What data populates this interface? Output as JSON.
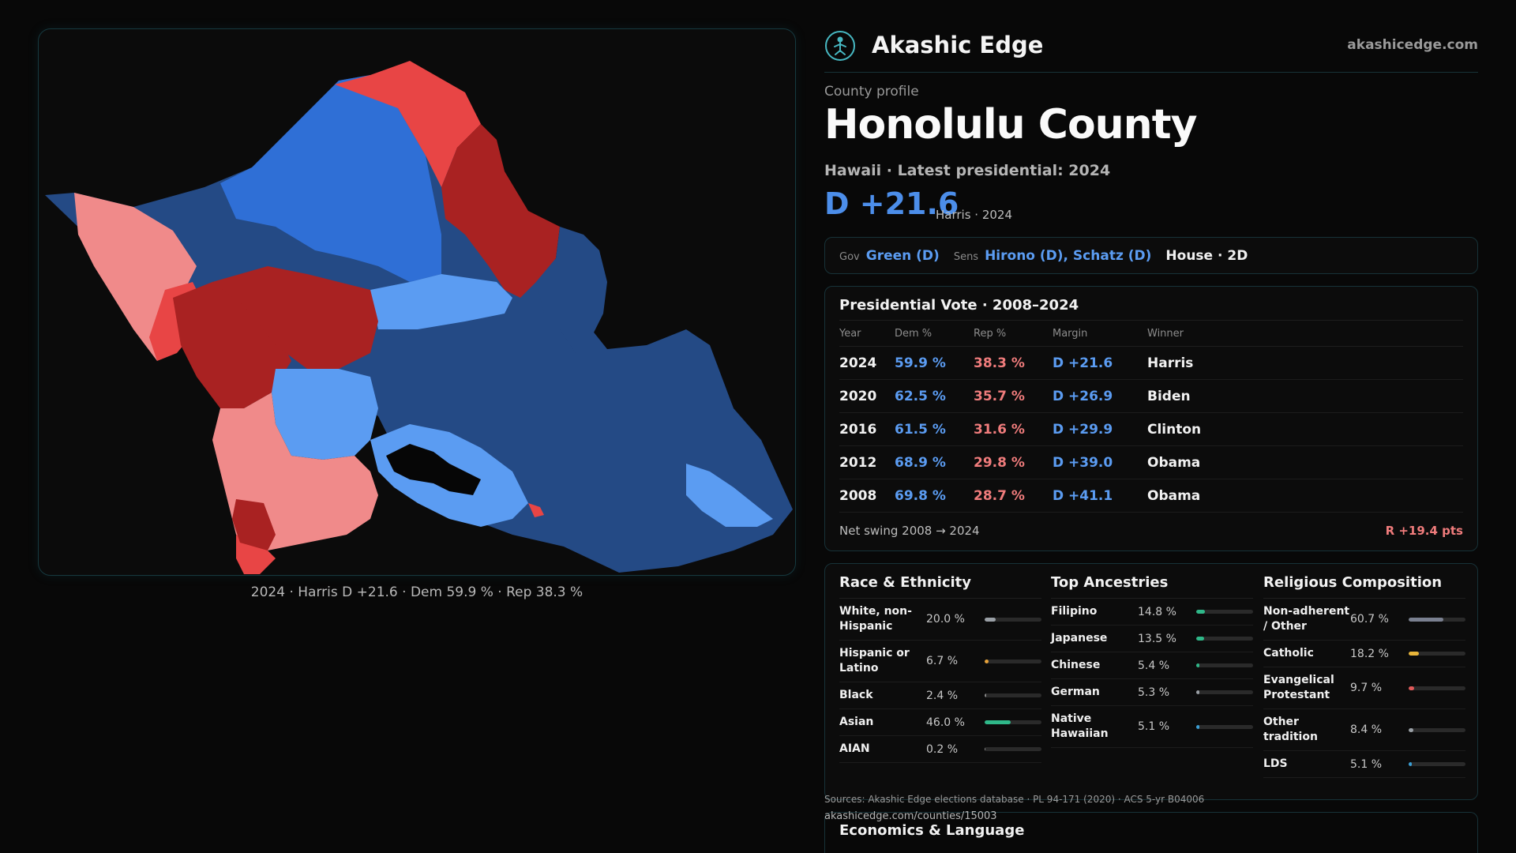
{
  "map": {
    "caption": "2024 · Harris D +21.6 · Dem 59.9 % · Rep 38.3 %",
    "colors": {
      "dem_dark": "#244a85",
      "dem_mid": "#2f6fd6",
      "dem_light": "#5b9cf2",
      "rep_light": "#f08a8a",
      "rep_mid": "#e84545",
      "rep_dark": "#a92222"
    }
  },
  "header": {
    "brand": "Akashic Edge",
    "site": "akashicedge.com",
    "logo_icon": "circular-figure-icon"
  },
  "profile": {
    "eyebrow": "County profile",
    "title": "Honolulu County",
    "subtitle": "Hawaii · Latest presidential: 2024",
    "margin": "D +21.6",
    "margin_note": "Harris · 2024"
  },
  "officials": {
    "gov_label": "Gov",
    "gov": "Green (D)",
    "sens_label": "Sens",
    "sens": "Hirono (D), Schatz (D)",
    "house": "House · 2D"
  },
  "presidential": {
    "title": "Presidential Vote · 2008–2024",
    "headers": [
      "Year",
      "Dem %",
      "Rep %",
      "Margin",
      "Winner"
    ],
    "rows": [
      {
        "year": "2024",
        "dem": "59.9 %",
        "rep": "38.3 %",
        "margin": "D +21.6",
        "winner": "Harris"
      },
      {
        "year": "2020",
        "dem": "62.5 %",
        "rep": "35.7 %",
        "margin": "D +26.9",
        "winner": "Biden"
      },
      {
        "year": "2016",
        "dem": "61.5 %",
        "rep": "31.6 %",
        "margin": "D +29.9",
        "winner": "Clinton"
      },
      {
        "year": "2012",
        "dem": "68.9 %",
        "rep": "29.8 %",
        "margin": "D +39.0",
        "winner": "Obama"
      },
      {
        "year": "2008",
        "dem": "69.8 %",
        "rep": "28.7 %",
        "margin": "D +41.1",
        "winner": "Obama"
      }
    ],
    "swing_label": "Net swing 2008 → 2024",
    "swing_value": "R +19.4 pts"
  },
  "demographics": {
    "race": {
      "title": "Race & Ethnicity",
      "items": [
        {
          "label": "White, non-Hispanic",
          "value": "20.0 %",
          "pct": 20.0,
          "color": "#9aa0a6"
        },
        {
          "label": "Hispanic or Latino",
          "value": "6.7 %",
          "pct": 6.7,
          "color": "#e8a33a"
        },
        {
          "label": "Black",
          "value": "2.4 %",
          "pct": 2.4,
          "color": "#8a8a8a"
        },
        {
          "label": "Asian",
          "value": "46.0 %",
          "pct": 46.0,
          "color": "#2fb889"
        },
        {
          "label": "AIAN",
          "value": "0.2 %",
          "pct": 0.2,
          "color": "#8a8a8a"
        }
      ]
    },
    "ancestries": {
      "title": "Top Ancestries",
      "items": [
        {
          "label": "Filipino",
          "value": "14.8 %",
          "pct": 14.8,
          "color": "#2fb889"
        },
        {
          "label": "Japanese",
          "value": "13.5 %",
          "pct": 13.5,
          "color": "#2fb889"
        },
        {
          "label": "Chinese",
          "value": "5.4 %",
          "pct": 5.4,
          "color": "#2fb889"
        },
        {
          "label": "German",
          "value": "5.3 %",
          "pct": 5.3,
          "color": "#9aa0a6"
        },
        {
          "label": "Native Hawaiian",
          "value": "5.1 %",
          "pct": 5.1,
          "color": "#3a9fd6"
        }
      ]
    },
    "religion": {
      "title": "Religious Composition",
      "items": [
        {
          "label": "Non-adherent / Other",
          "value": "60.7 %",
          "pct": 60.7,
          "color": "#7a8090"
        },
        {
          "label": "Catholic",
          "value": "18.2 %",
          "pct": 18.2,
          "color": "#e8b53a"
        },
        {
          "label": "Evangelical Protestant",
          "value": "9.7 %",
          "pct": 9.7,
          "color": "#e05a5a"
        },
        {
          "label": "Other tradition",
          "value": "8.4 %",
          "pct": 8.4,
          "color": "#9aa0a6"
        },
        {
          "label": "LDS",
          "value": "5.1 %",
          "pct": 5.1,
          "color": "#3a9fd6"
        }
      ]
    }
  },
  "footer": {
    "sources": "Sources: Akashic Edge elections database · PL 94-171 (2020) · ACS 5-yr B04006",
    "url": "akashicedge.com/counties/15003"
  },
  "economics": {
    "title": "Economics & Language"
  }
}
